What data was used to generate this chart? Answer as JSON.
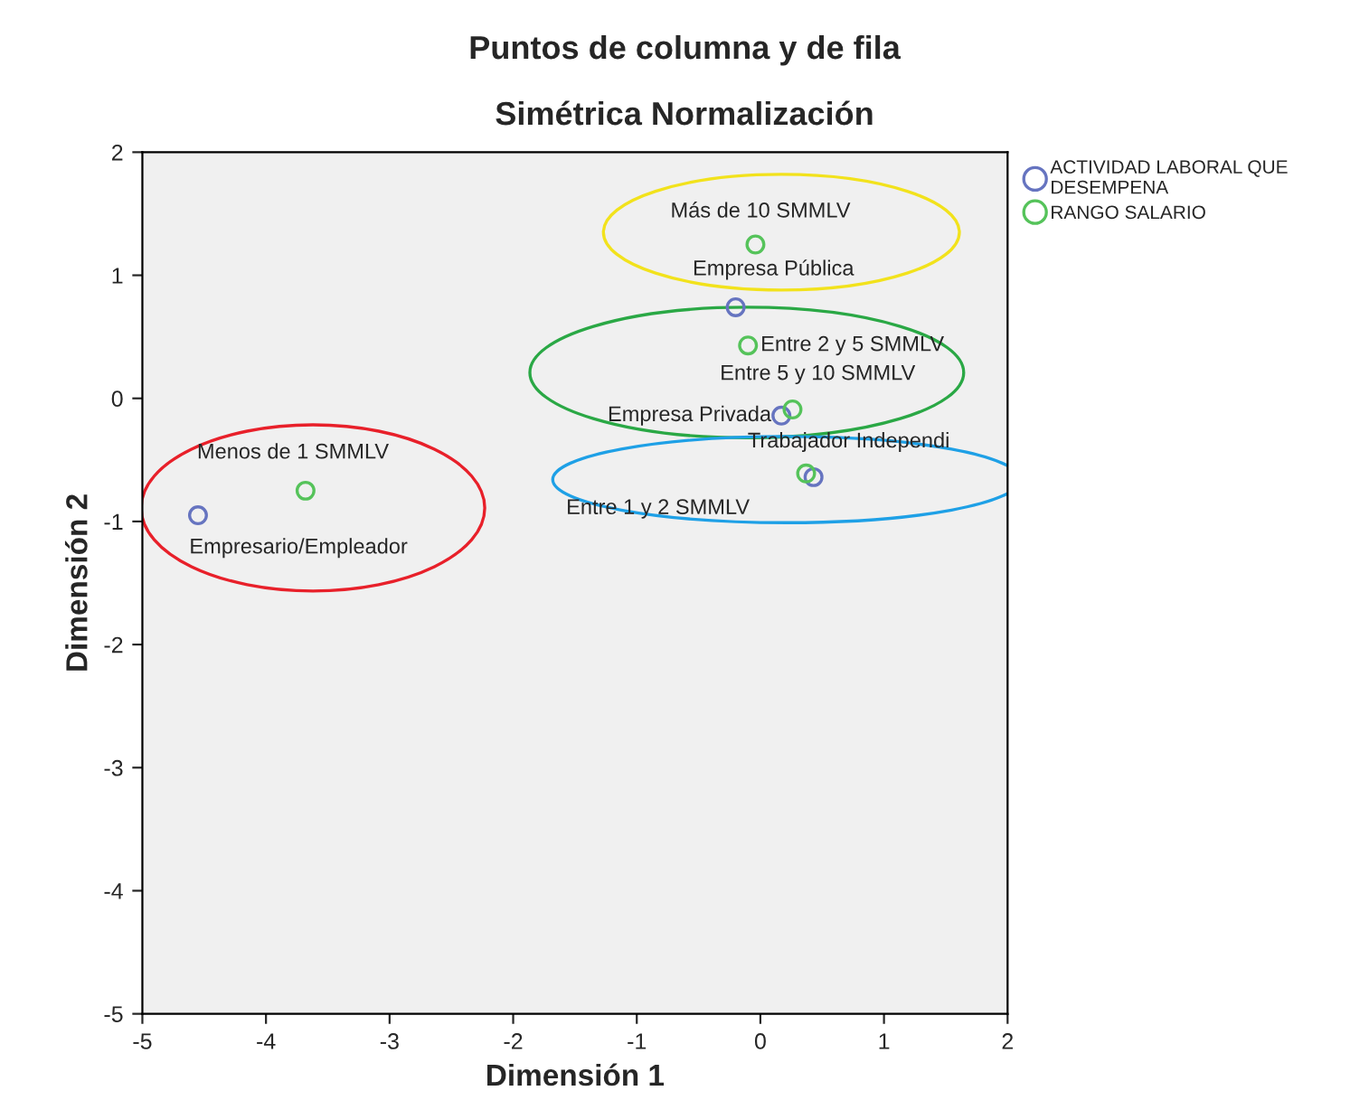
{
  "chart_data": {
    "type": "scatter",
    "title": "Puntos de columna y de fila",
    "subtitle": "Simétrica Normalización",
    "xlabel": "Dimensión 1",
    "ylabel": "Dimensión 2",
    "xlim": [
      -5,
      2
    ],
    "ylim": [
      -5,
      2
    ],
    "xticks": [
      -5,
      -4,
      -3,
      -2,
      -1,
      0,
      1,
      2
    ],
    "yticks": [
      -5,
      -4,
      -3,
      -2,
      -1,
      0,
      1,
      2
    ],
    "grid": false,
    "legend": "top right",
    "marker": "circle",
    "series": [
      {
        "name": "ACTIVIDAD LABORAL QUE\nDESEMPENA",
        "color": "#6674c0",
        "x": [
          -4.55,
          -0.2,
          0.17,
          0.43
        ],
        "values": [
          -0.95,
          0.74,
          -0.14,
          -0.64
        ]
      },
      {
        "name": "RANGO SALARIO",
        "color": "#55c35a",
        "x": [
          -3.68,
          -0.04,
          -0.1,
          0.26,
          0.37
        ],
        "values": [
          -0.75,
          1.25,
          0.43,
          -0.09,
          -0.61
        ]
      }
    ],
    "annotations": [
      {
        "text": "Empresario/Empleador",
        "x": -4.55,
        "y": -0.95
      },
      {
        "text": "Empresa Pública",
        "x": -0.2,
        "y": 0.74
      },
      {
        "text": "Empresa Privada",
        "x": 0.17,
        "y": -0.14
      },
      {
        "text": "Trabajador Independi",
        "x": 0.43,
        "y": -0.64
      },
      {
        "text": "Menos de 1 SMMLV",
        "x": -3.68,
        "y": -0.75
      },
      {
        "text": "Más de 10 SMMLV",
        "x": -0.04,
        "y": 1.25
      },
      {
        "text": "Entre 2 y 5 SMMLV",
        "x": -0.1,
        "y": 0.43
      },
      {
        "text": "Entre 5 y 10 SMMLV",
        "x": 0.26,
        "y": -0.09
      },
      {
        "text": "Entre 1 y 2 SMMLV",
        "x": 0.37,
        "y": -0.61
      }
    ]
  }
}
